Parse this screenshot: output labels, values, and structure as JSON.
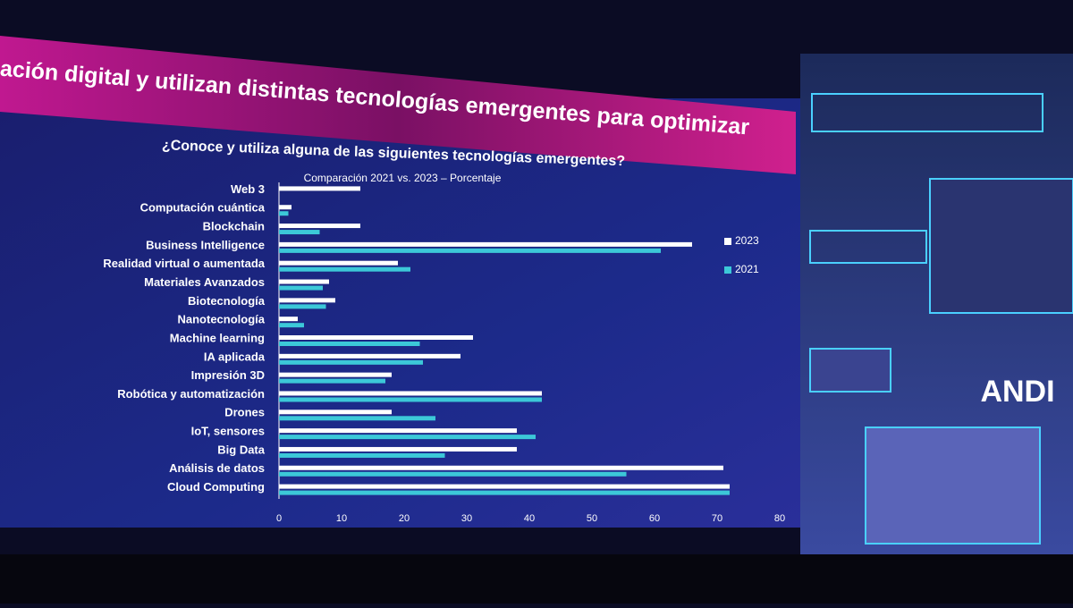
{
  "banner": "ación digital  y utilizan distintas tecnologías emergentes para optimizar",
  "logo": "ANDI",
  "chart_data": {
    "type": "hbar",
    "title": "¿Conoce y utiliza alguna de las siguientes tecnologías emergentes?",
    "subtitle": "Comparación 2021 vs. 2023 – Porcentaje",
    "categories": [
      "Web 3",
      "Computación cuántica",
      "Blockchain",
      "Business Intelligence",
      "Realidad virtual o aumentada",
      "Materiales Avanzados",
      "Biotecnología",
      "Nanotecnología",
      "Machine learning",
      "IA aplicada",
      "Impresión 3D",
      "Robótica y automatización",
      "Drones",
      "IoT, sensores",
      "Big Data",
      "Análisis de datos",
      "Cloud Computing"
    ],
    "series": [
      {
        "name": "2023",
        "color": "#ffffff",
        "values": [
          13,
          2,
          13,
          66,
          19,
          8,
          9,
          3,
          31,
          29,
          18,
          42,
          18,
          38,
          38,
          71,
          72
        ]
      },
      {
        "name": "2021",
        "color": "#3cc8d8",
        "values": [
          null,
          1.5,
          6.5,
          61,
          21,
          7,
          7.5,
          4,
          22.5,
          23,
          17,
          42,
          25,
          41,
          26.5,
          55.5,
          72
        ]
      }
    ],
    "xlim": [
      0,
      80
    ],
    "xticks": [
      0,
      10,
      20,
      30,
      40,
      50,
      60,
      70,
      80
    ],
    "legend": "right"
  }
}
